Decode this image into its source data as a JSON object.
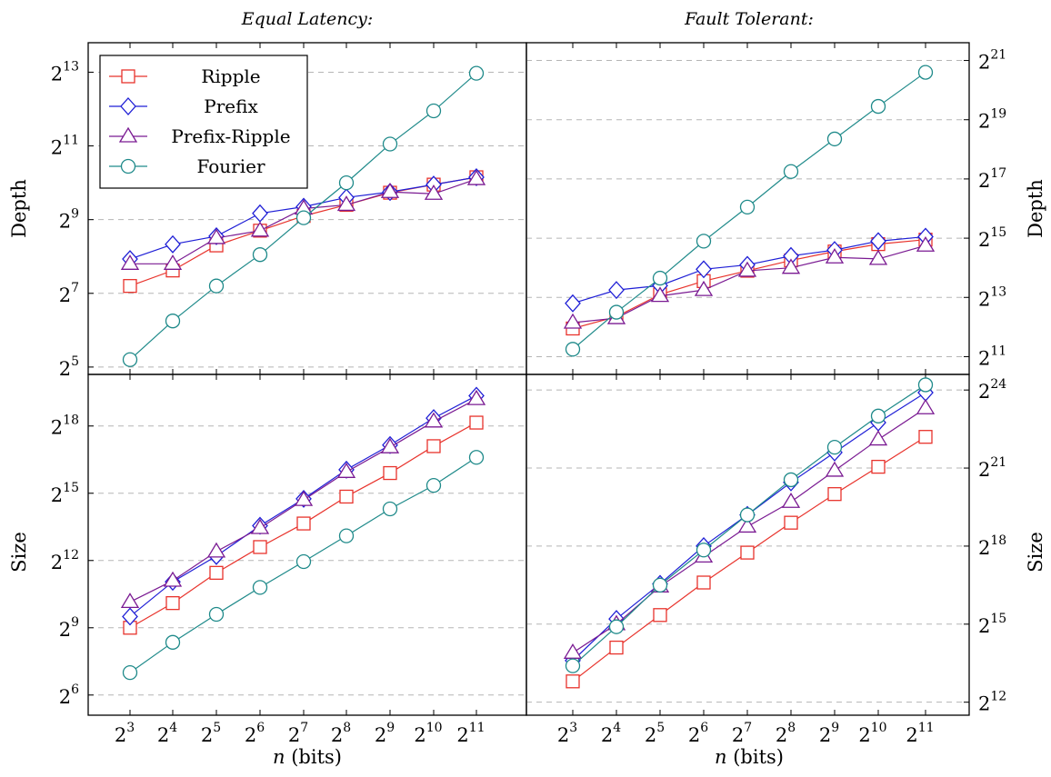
{
  "columns": [
    {
      "title": "Equal Latency:"
    },
    {
      "title": "Fault Tolerant:"
    }
  ],
  "xlabel_var": "n",
  "xlabel_unit": " (bits)",
  "chart_data": [
    {
      "type": "line",
      "title": "Equal Latency:",
      "xlabel": "n (bits)",
      "ylabel": "Depth",
      "xscale": "log2",
      "yscale": "log2",
      "x": [
        8,
        16,
        32,
        64,
        128,
        256,
        512,
        1024,
        2048
      ],
      "x_ticks": [
        3,
        4,
        5,
        6,
        7,
        8,
        9,
        10,
        11
      ],
      "y_ticks": [
        5,
        7,
        9,
        11,
        13
      ],
      "ylim_log2": [
        4.8,
        13.8
      ],
      "grid": "horizontal-dashed",
      "legend": "top-left",
      "series": [
        {
          "name": "Ripple",
          "marker": "square",
          "color": "#e8332c",
          "log2_values": [
            7.2,
            7.62,
            8.3,
            8.7,
            9.1,
            9.4,
            9.73,
            9.95,
            10.15
          ]
        },
        {
          "name": "Prefix",
          "marker": "diamond",
          "color": "#1f1fd6",
          "log2_values": [
            7.93,
            8.33,
            8.55,
            9.17,
            9.35,
            9.6,
            9.75,
            9.95,
            10.15
          ]
        },
        {
          "name": "Prefix-Ripple",
          "marker": "triangle",
          "color": "#7a1a92",
          "log2_values": [
            7.8,
            7.8,
            8.5,
            8.7,
            9.3,
            9.4,
            9.75,
            9.7,
            10.1
          ]
        },
        {
          "name": "Fourier",
          "marker": "circle",
          "color": "#1f8a8a",
          "log2_values": [
            5.2,
            6.25,
            7.2,
            8.05,
            9.05,
            10.0,
            11.05,
            11.95,
            12.97
          ]
        }
      ]
    },
    {
      "type": "line",
      "title": "Fault Tolerant:",
      "xlabel": "n (bits)",
      "ylabel": "Depth",
      "xscale": "log2",
      "yscale": "log2",
      "x": [
        8,
        16,
        32,
        64,
        128,
        256,
        512,
        1024,
        2048
      ],
      "x_ticks": [
        3,
        4,
        5,
        6,
        7,
        8,
        9,
        10,
        11
      ],
      "y_ticks": [
        11,
        13,
        15,
        17,
        19,
        21
      ],
      "ylim_log2": [
        10.4,
        21.6
      ],
      "grid": "horizontal-dashed",
      "legend": "none",
      "series": [
        {
          "name": "Ripple",
          "marker": "square",
          "color": "#e8332c",
          "log2_values": [
            11.95,
            12.35,
            13.1,
            13.55,
            13.9,
            14.25,
            14.55,
            14.8,
            14.95
          ]
        },
        {
          "name": "Prefix",
          "marker": "diamond",
          "color": "#1f1fd6",
          "log2_values": [
            12.8,
            13.25,
            13.4,
            13.95,
            14.1,
            14.4,
            14.6,
            14.9,
            15.05
          ]
        },
        {
          "name": "Prefix-Ripple",
          "marker": "triangle",
          "color": "#7a1a92",
          "log2_values": [
            12.15,
            12.3,
            13.05,
            13.25,
            13.9,
            14.0,
            14.35,
            14.3,
            14.75
          ]
        },
        {
          "name": "Fourier",
          "marker": "circle",
          "color": "#1f8a8a",
          "log2_values": [
            11.25,
            12.5,
            13.65,
            14.9,
            16.05,
            17.25,
            18.35,
            19.45,
            20.6
          ]
        }
      ]
    },
    {
      "type": "line",
      "title": "Equal Latency:",
      "xlabel": "n (bits)",
      "ylabel": "Size",
      "xscale": "log2",
      "yscale": "log2",
      "x": [
        8,
        16,
        32,
        64,
        128,
        256,
        512,
        1024,
        2048
      ],
      "x_ticks": [
        3,
        4,
        5,
        6,
        7,
        8,
        9,
        10,
        11
      ],
      "y_ticks": [
        6,
        9,
        12,
        15,
        18
      ],
      "ylim_log2": [
        5.1,
        20.3
      ],
      "grid": "horizontal-dashed",
      "legend": "none",
      "series": [
        {
          "name": "Ripple",
          "marker": "square",
          "color": "#e8332c",
          "log2_values": [
            9.0,
            10.1,
            11.45,
            12.6,
            13.65,
            14.85,
            15.9,
            17.1,
            18.15
          ]
        },
        {
          "name": "Prefix",
          "marker": "diamond",
          "color": "#1f1fd6",
          "log2_values": [
            9.5,
            11.05,
            12.2,
            13.55,
            14.75,
            16.05,
            17.15,
            18.35,
            19.35
          ]
        },
        {
          "name": "Prefix-Ripple",
          "marker": "triangle",
          "color": "#7a1a92",
          "log2_values": [
            10.15,
            11.1,
            12.4,
            13.45,
            14.7,
            15.95,
            17.05,
            18.2,
            19.2
          ]
        },
        {
          "name": "Fourier",
          "marker": "circle",
          "color": "#1f8a8a",
          "log2_values": [
            7.0,
            8.35,
            9.6,
            10.8,
            11.95,
            13.1,
            14.3,
            15.35,
            16.6
          ]
        }
      ]
    },
    {
      "type": "line",
      "title": "Fault Tolerant:",
      "xlabel": "n (bits)",
      "ylabel": "Size",
      "xscale": "log2",
      "yscale": "log2",
      "x": [
        8,
        16,
        32,
        64,
        128,
        256,
        512,
        1024,
        2048
      ],
      "x_ticks": [
        3,
        4,
        5,
        6,
        7,
        8,
        9,
        10,
        11
      ],
      "y_ticks": [
        12,
        15,
        18,
        21,
        24
      ],
      "ylim_log2": [
        11.5,
        24.6
      ],
      "grid": "horizontal-dashed",
      "legend": "none",
      "series": [
        {
          "name": "Ripple",
          "marker": "square",
          "color": "#e8332c",
          "log2_values": [
            12.8,
            14.1,
            15.35,
            16.6,
            17.75,
            18.9,
            20.0,
            21.05,
            22.2
          ]
        },
        {
          "name": "Prefix",
          "marker": "diamond",
          "color": "#1f1fd6",
          "log2_values": [
            13.6,
            15.2,
            16.55,
            18.0,
            19.2,
            20.45,
            21.6,
            22.75,
            23.9
          ]
        },
        {
          "name": "Prefix-Ripple",
          "marker": "triangle",
          "color": "#7a1a92",
          "log2_values": [
            13.9,
            15.0,
            16.45,
            17.6,
            18.75,
            19.7,
            20.9,
            22.1,
            23.3
          ]
        },
        {
          "name": "Fourier",
          "marker": "circle",
          "color": "#1f8a8a",
          "log2_values": [
            13.4,
            14.9,
            16.5,
            17.85,
            19.2,
            20.55,
            21.8,
            23.0,
            24.2
          ]
        }
      ]
    }
  ]
}
